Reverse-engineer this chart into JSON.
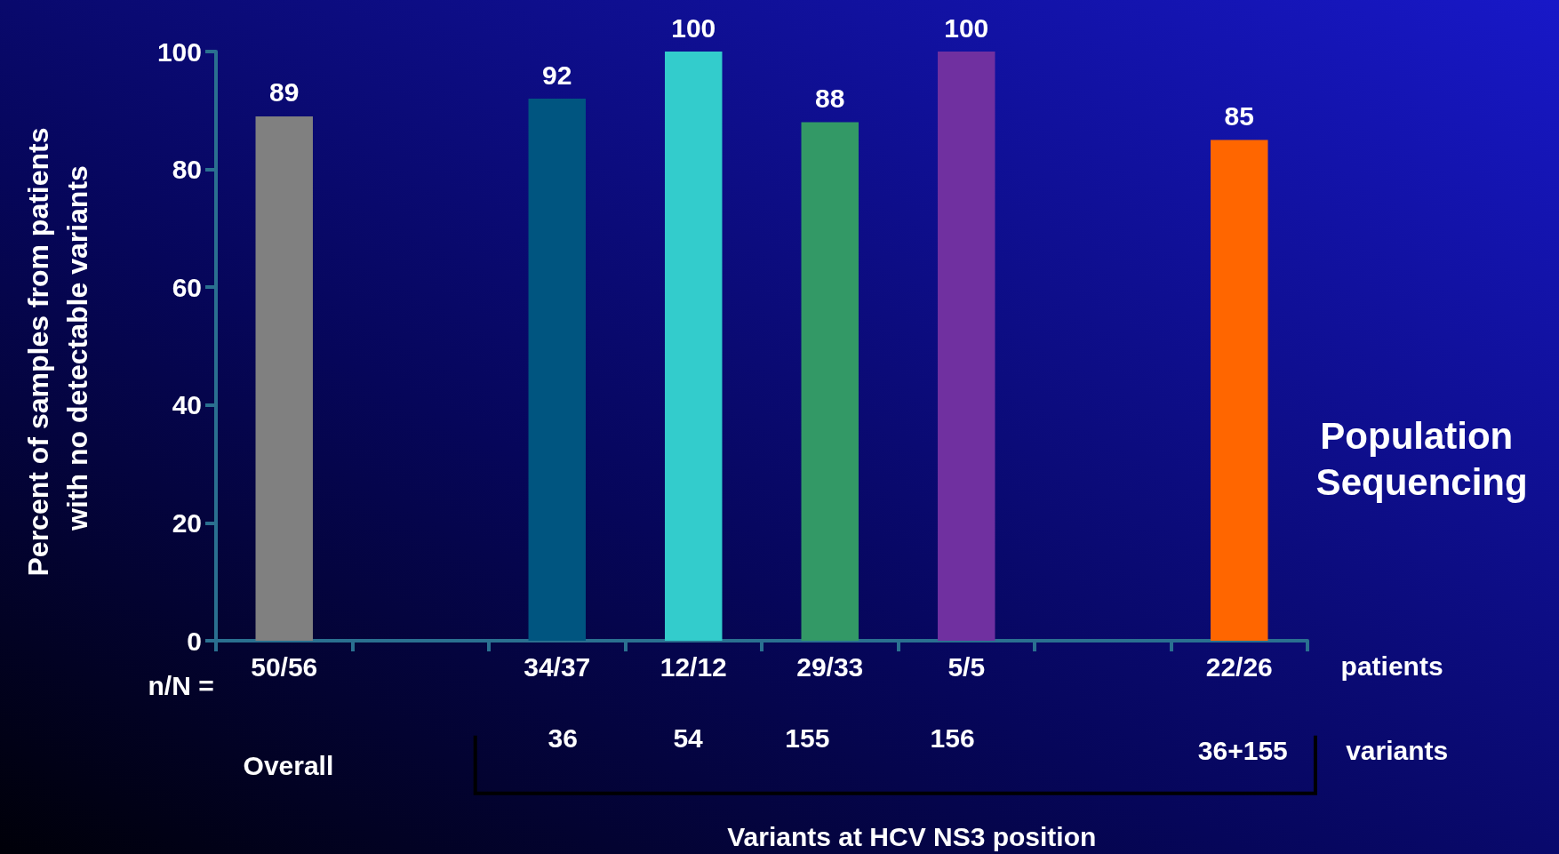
{
  "chart_data": {
    "type": "bar",
    "ylabel": "Percent of samples from patients with no detectable variants",
    "categories": [
      "50/56",
      null,
      "34/37",
      "12/12",
      "29/33",
      "5/5",
      null,
      "22/26"
    ],
    "values": [
      89,
      null,
      92,
      100,
      88,
      100,
      null,
      85
    ],
    "colors": [
      "#808080",
      "#808080",
      "#005580",
      "#33cccc",
      "#339966",
      "#7030a0",
      "#808080",
      "#ff6600"
    ],
    "ylim": [
      0,
      100
    ],
    "yticks": [
      0,
      20,
      40,
      60,
      80,
      100
    ],
    "grid": false,
    "data_labels": true,
    "annotations": [
      "n/N =",
      "patients",
      "36",
      "54",
      "155",
      "156",
      "36+155",
      "variants",
      "Overall",
      "Variants at HCV NS3 position",
      "Population Sequencing"
    ]
  }
}
